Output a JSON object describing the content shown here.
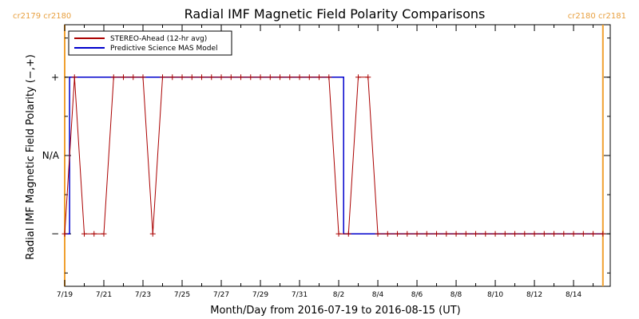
{
  "chart_data": {
    "type": "line",
    "title": "Radial IMF Magnetic Field Polarity Comparisons",
    "xlabel": "Month/Day from 2016-07-19 to 2016-08-15 (UT)",
    "ylabel": "Radial IMF Magnetic Field Polarity (−,+)",
    "x_range": [
      "2016-07-19T00:00",
      "2016-08-15T21:00"
    ],
    "y_range": [
      -1.67,
      1.67
    ],
    "x_tick_labels": [
      "7/19",
      "7/21",
      "7/23",
      "7/25",
      "7/27",
      "7/29",
      "7/31",
      "8/2",
      "8/4",
      "8/6",
      "8/8",
      "8/10",
      "8/12",
      "8/14"
    ],
    "y_ticks": [
      {
        "value": 1,
        "label": "+"
      },
      {
        "value": 0,
        "label": "N/A"
      },
      {
        "value": -1,
        "label": "−"
      }
    ],
    "carrington_labels": {
      "left": "cr2179 cr2180",
      "right": "cr2180 cr2181"
    },
    "carrington_boundaries": [
      "2016-07-19T00:00",
      "2016-08-15T12:00"
    ],
    "legend_position": "top-left",
    "series": [
      {
        "name": "STEREO-Ahead (12-hr avg)",
        "color": "#aa0000",
        "x": [
          "2016-07-19T00:00",
          "2016-07-19T12:00",
          "2016-07-20T00:00",
          "2016-07-20T12:00",
          "2016-07-21T00:00",
          "2016-07-21T12:00",
          "2016-07-22T00:00",
          "2016-07-22T12:00",
          "2016-07-23T00:00",
          "2016-07-23T12:00",
          "2016-07-24T00:00",
          "2016-07-24T12:00",
          "2016-07-25T00:00",
          "2016-07-25T12:00",
          "2016-07-26T00:00",
          "2016-07-26T12:00",
          "2016-07-27T00:00",
          "2016-07-27T12:00",
          "2016-07-28T00:00",
          "2016-07-28T12:00",
          "2016-07-29T00:00",
          "2016-07-29T12:00",
          "2016-07-30T00:00",
          "2016-07-30T12:00",
          "2016-07-31T00:00",
          "2016-07-31T12:00",
          "2016-08-01T00:00",
          "2016-08-01T12:00",
          "2016-08-02T00:00",
          "2016-08-02T12:00",
          "2016-08-03T00:00",
          "2016-08-03T12:00",
          "2016-08-04T00:00",
          "2016-08-04T12:00",
          "2016-08-05T00:00",
          "2016-08-05T12:00",
          "2016-08-06T00:00",
          "2016-08-06T12:00",
          "2016-08-07T00:00",
          "2016-08-07T12:00",
          "2016-08-08T00:00",
          "2016-08-08T12:00",
          "2016-08-09T00:00",
          "2016-08-09T12:00",
          "2016-08-10T00:00",
          "2016-08-10T12:00",
          "2016-08-11T00:00",
          "2016-08-11T12:00",
          "2016-08-12T00:00",
          "2016-08-12T12:00",
          "2016-08-13T00:00",
          "2016-08-13T12:00",
          "2016-08-14T00:00",
          "2016-08-14T12:00",
          "2016-08-15T00:00",
          "2016-08-15T12:00"
        ],
        "y": [
          -1,
          1,
          -1,
          -1,
          -1,
          1,
          1,
          1,
          1,
          -1,
          1,
          1,
          1,
          1,
          1,
          1,
          1,
          1,
          1,
          1,
          1,
          1,
          1,
          1,
          1,
          1,
          1,
          1,
          -1,
          -1,
          1,
          1,
          -1,
          -1,
          -1,
          -1,
          -1,
          -1,
          -1,
          -1,
          -1,
          -1,
          -1,
          -1,
          -1,
          -1,
          -1,
          -1,
          -1,
          -1,
          -1,
          -1,
          -1,
          -1,
          -1,
          -1
        ]
      },
      {
        "name": "Predictive Science MAS Model",
        "color": "#0000cc",
        "steps": [
          {
            "from": "2016-07-19T00:00",
            "to": "2016-07-19T06:00",
            "value": -1
          },
          {
            "from": "2016-07-19T06:00",
            "to": "2016-08-02T06:00",
            "value": 1
          },
          {
            "from": "2016-08-02T06:00",
            "to": "2016-08-15T12:00",
            "value": -1
          }
        ]
      }
    ]
  }
}
